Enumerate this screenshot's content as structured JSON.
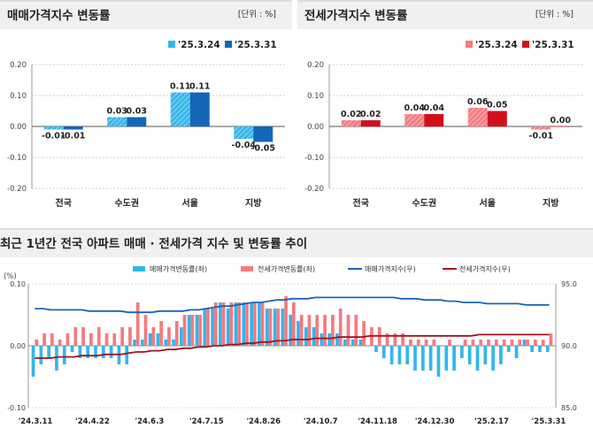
{
  "panels": {
    "sale": {
      "title": "매매가격지수 변동률",
      "unit": "[단위 : %]"
    },
    "jeonse": {
      "title": "전세가격지수 변동률",
      "unit": "[단위 : %]"
    },
    "trend": {
      "title": "최근 1년간 전국 아파트 매매 · 전세가격 지수 및 변동률 추이"
    }
  },
  "colors": {
    "sale_light": "#33b6ea",
    "sale_dark": "#1565b8",
    "jeonse_light": "#f47a80",
    "jeonse_dark": "#d40f1c",
    "sale_index": "#1a64b8",
    "jeonse_index": "#a0141c"
  },
  "chart_data": [
    {
      "type": "bar",
      "title": "매매가격지수 변동률",
      "unit": "[단위 : %]",
      "categories": [
        "전국",
        "수도권",
        "서울",
        "지방"
      ],
      "series": [
        {
          "name": "'25.3.24",
          "values": [
            -0.01,
            0.03,
            0.11,
            -0.04
          ],
          "labels": [
            "-0.01",
            "0.03",
            "0.11",
            "-0.04"
          ]
        },
        {
          "name": "'25.3.31",
          "values": [
            -0.01,
            0.03,
            0.11,
            -0.05
          ],
          "labels": [
            "-0.01",
            "0.03",
            "0.11",
            "-0.05"
          ]
        }
      ],
      "ylim": [
        -0.2,
        0.2
      ],
      "yticks": [
        "0.20",
        "0.10",
        "0.00",
        "-0.10",
        "-0.20"
      ],
      "legend": "top-right",
      "grid": true
    },
    {
      "type": "bar",
      "title": "전세가격지수 변동률",
      "unit": "[단위 : %]",
      "categories": [
        "전국",
        "수도권",
        "서울",
        "지방"
      ],
      "series": [
        {
          "name": "'25.3.24",
          "values": [
            0.02,
            0.04,
            0.06,
            -0.01
          ],
          "labels": [
            "0.02",
            "0.04",
            "0.06",
            "-0.01"
          ]
        },
        {
          "name": "'25.3.31",
          "values": [
            0.02,
            0.04,
            0.05,
            0.0
          ],
          "labels": [
            "0.02",
            "0.04",
            "0.05",
            "0.00"
          ]
        }
      ],
      "ylim": [
        -0.2,
        0.2
      ],
      "yticks": [
        "0.20",
        "0.10",
        "0.00",
        "-0.10",
        "-0.20"
      ],
      "legend": "top-right",
      "grid": true
    },
    {
      "type": "bar",
      "title": "최근 1년간 전국 아파트 매매 · 전세가격 지수 및 변동률 추이",
      "y_left_label": "(%)",
      "y_left_ticks": [
        "0.10",
        "0.00",
        "-0.10"
      ],
      "ylim_left": [
        -0.1,
        0.1
      ],
      "y_right_ticks": [
        "95.0",
        "90.0",
        "85.0"
      ],
      "ylim_right": [
        85,
        95
      ],
      "x_ticks": [
        "'24.3.11",
        "'24.4.22",
        "'24.6.3",
        "'24.7.15",
        "'24.8.26",
        "'24.10.7",
        "'24.11.18",
        "'24.12.30",
        "'25.2.17",
        "'25.3.31"
      ],
      "legend": "top",
      "series": [
        {
          "name": "매매가격변동률(좌)",
          "type": "bar",
          "values": [
            -0.05,
            -0.03,
            -0.02,
            -0.04,
            -0.03,
            -0.01,
            -0.02,
            -0.02,
            -0.02,
            -0.02,
            -0.02,
            -0.03,
            -0.03,
            0.01,
            0.01,
            0.02,
            0.02,
            0.01,
            0.01,
            0.03,
            0.05,
            0.05,
            0.06,
            0.06,
            0.07,
            0.06,
            0.07,
            0.07,
            0.07,
            0.07,
            0.06,
            0.06,
            0.06,
            0.05,
            0.04,
            0.03,
            0.03,
            0.02,
            0.02,
            0.02,
            0.01,
            0.01,
            0.01,
            0.0,
            -0.01,
            -0.02,
            -0.03,
            -0.03,
            -0.03,
            -0.04,
            -0.04,
            -0.04,
            -0.05,
            -0.04,
            -0.04,
            -0.02,
            -0.03,
            -0.04,
            -0.03,
            -0.04,
            -0.03,
            -0.01,
            -0.02,
            0.01,
            -0.01,
            -0.01,
            -0.01
          ]
        },
        {
          "name": "전세가격변동률(좌)",
          "type": "bar",
          "values": [
            0.01,
            0.02,
            0.02,
            0.01,
            0.02,
            0.03,
            0.03,
            0.02,
            0.03,
            0.02,
            0.02,
            0.03,
            0.03,
            0.07,
            0.05,
            0.03,
            0.04,
            0.03,
            0.04,
            0.05,
            0.05,
            0.05,
            0.06,
            0.07,
            0.07,
            0.07,
            0.07,
            0.07,
            0.07,
            0.07,
            0.06,
            0.06,
            0.08,
            0.07,
            0.05,
            0.05,
            0.05,
            0.05,
            0.05,
            0.06,
            0.05,
            0.05,
            0.04,
            0.03,
            0.03,
            0.02,
            0.02,
            0.02,
            0.01,
            0.01,
            0.01,
            0.01,
            0.0,
            0.01,
            0.0,
            0.01,
            0.01,
            0.01,
            0.01,
            0.01,
            0.01,
            0.01,
            0.01,
            0.01,
            0.01,
            0.01,
            0.02
          ]
        },
        {
          "name": "매매가격지수(우)",
          "type": "line",
          "axis": "right",
          "values": [
            93.0,
            93.0,
            92.9,
            92.9,
            92.9,
            92.9,
            92.9,
            92.8,
            92.8,
            92.8,
            92.8,
            92.8,
            92.7,
            92.7,
            92.7,
            92.7,
            92.8,
            92.8,
            92.8,
            92.8,
            92.9,
            92.9,
            93.0,
            93.1,
            93.2,
            93.2,
            93.3,
            93.4,
            93.5,
            93.5,
            93.6,
            93.7,
            93.7,
            93.8,
            93.8,
            93.8,
            93.9,
            93.9,
            93.9,
            93.9,
            93.9,
            93.9,
            93.9,
            93.9,
            93.9,
            93.9,
            93.9,
            93.8,
            93.8,
            93.8,
            93.7,
            93.7,
            93.7,
            93.6,
            93.6,
            93.5,
            93.5,
            93.5,
            93.4,
            93.4,
            93.4,
            93.4,
            93.4,
            93.3,
            93.3,
            93.3,
            93.3
          ]
        },
        {
          "name": "전세가격지수(우)",
          "type": "line",
          "axis": "right",
          "values": [
            89.0,
            89.0,
            89.0,
            89.1,
            89.1,
            89.1,
            89.2,
            89.2,
            89.2,
            89.3,
            89.3,
            89.3,
            89.4,
            89.5,
            89.5,
            89.6,
            89.6,
            89.7,
            89.7,
            89.8,
            89.8,
            89.9,
            89.9,
            90.0,
            90.0,
            90.1,
            90.1,
            90.2,
            90.2,
            90.3,
            90.3,
            90.4,
            90.4,
            90.5,
            90.5,
            90.5,
            90.6,
            90.6,
            90.6,
            90.7,
            90.7,
            90.7,
            90.7,
            90.8,
            90.8,
            90.8,
            90.8,
            90.8,
            90.8,
            90.8,
            90.8,
            90.8,
            90.8,
            90.8,
            90.8,
            90.8,
            90.8,
            90.9,
            90.9,
            90.9,
            90.9,
            90.9,
            90.9,
            90.9,
            90.9,
            90.9,
            90.9
          ]
        }
      ]
    }
  ]
}
